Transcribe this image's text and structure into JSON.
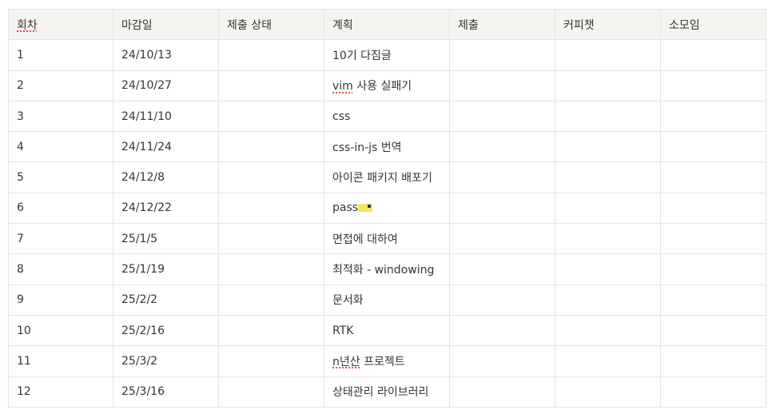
{
  "columns": [
    "회차",
    "마감일",
    "제출 상태",
    "계획",
    "제출",
    "커피챗",
    "소모임"
  ],
  "rows": [
    {
      "round": "1",
      "deadline": "24/10/13",
      "status": "",
      "plan": "10기 다짐글",
      "submit": "",
      "coffee": "",
      "meetup": ""
    },
    {
      "round": "2",
      "deadline": "24/10/27",
      "status": "",
      "plan_spell": "vim",
      "plan": " 사용 실패기",
      "submit": "",
      "coffee": "",
      "meetup": ""
    },
    {
      "round": "3",
      "deadline": "24/11/10",
      "status": "",
      "plan": "css",
      "submit": "",
      "coffee": "",
      "meetup": ""
    },
    {
      "round": "4",
      "deadline": "24/11/24",
      "status": "",
      "plan": "css-in-js 번역",
      "submit": "",
      "coffee": "",
      "meetup": ""
    },
    {
      "round": "5",
      "deadline": "24/12/8",
      "status": "",
      "plan": "아이콘 패키지 배포기",
      "submit": "",
      "coffee": "",
      "meetup": ""
    },
    {
      "round": "6",
      "deadline": "24/12/22",
      "status": "",
      "plan": "pass",
      "plan_icon": "pass-ticket-icon",
      "submit": "",
      "coffee": "",
      "meetup": ""
    },
    {
      "round": "7",
      "deadline": "25/1/5",
      "status": "",
      "plan": "면접에 대하여",
      "submit": "",
      "coffee": "",
      "meetup": ""
    },
    {
      "round": "8",
      "deadline": "25/1/19",
      "status": "",
      "plan": "최적화 - windowing",
      "submit": "",
      "coffee": "",
      "meetup": ""
    },
    {
      "round": "9",
      "deadline": "25/2/2",
      "status": "",
      "plan": "문서화",
      "submit": "",
      "coffee": "",
      "meetup": ""
    },
    {
      "round": "10",
      "deadline": "25/2/16",
      "status": "",
      "plan": "RTK",
      "submit": "",
      "coffee": "",
      "meetup": ""
    },
    {
      "round": "11",
      "deadline": "25/3/2",
      "status": "",
      "plan_spell": "n년산",
      "plan": " 프로젝트",
      "submit": "",
      "coffee": "",
      "meetup": ""
    },
    {
      "round": "12",
      "deadline": "25/3/16",
      "status": "",
      "plan": "상태관리 라이브러리",
      "submit": "",
      "coffee": "",
      "meetup": ""
    }
  ]
}
